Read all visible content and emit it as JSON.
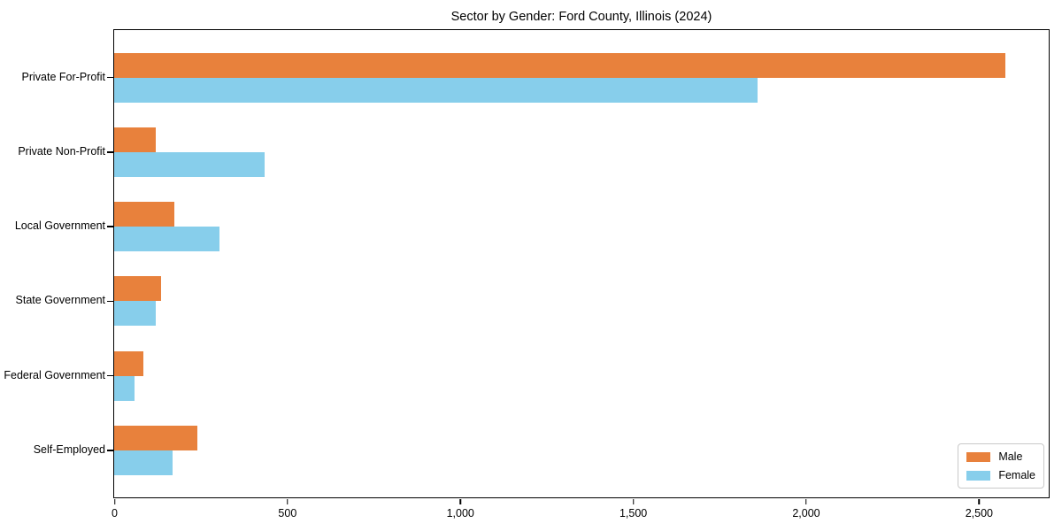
{
  "chart_data": {
    "type": "bar",
    "orientation": "horizontal",
    "title": "Sector by Gender: Ford County, Illinois (2024)",
    "categories": [
      "Private For-Profit",
      "Private Non-Profit",
      "Local Government",
      "State Government",
      "Federal Government",
      "Self-Employed"
    ],
    "series": [
      {
        "name": "Male",
        "color": "#E8813C",
        "values": [
          2575,
          120,
          175,
          135,
          85,
          240
        ]
      },
      {
        "name": "Female",
        "color": "#87CEEB",
        "values": [
          1860,
          435,
          305,
          120,
          60,
          170
        ]
      }
    ],
    "xlabel": "",
    "ylabel": "",
    "xlim": [
      0,
      2700
    ],
    "x_ticks": [
      0,
      500,
      1000,
      1500,
      2000,
      2500
    ],
    "x_tick_labels": [
      "0",
      "500",
      "1,000",
      "1,500",
      "2,000",
      "2,500"
    ],
    "grid": false,
    "legend_position": "lower right",
    "plot_border_color": "#000000",
    "background_color": "#ffffff"
  }
}
